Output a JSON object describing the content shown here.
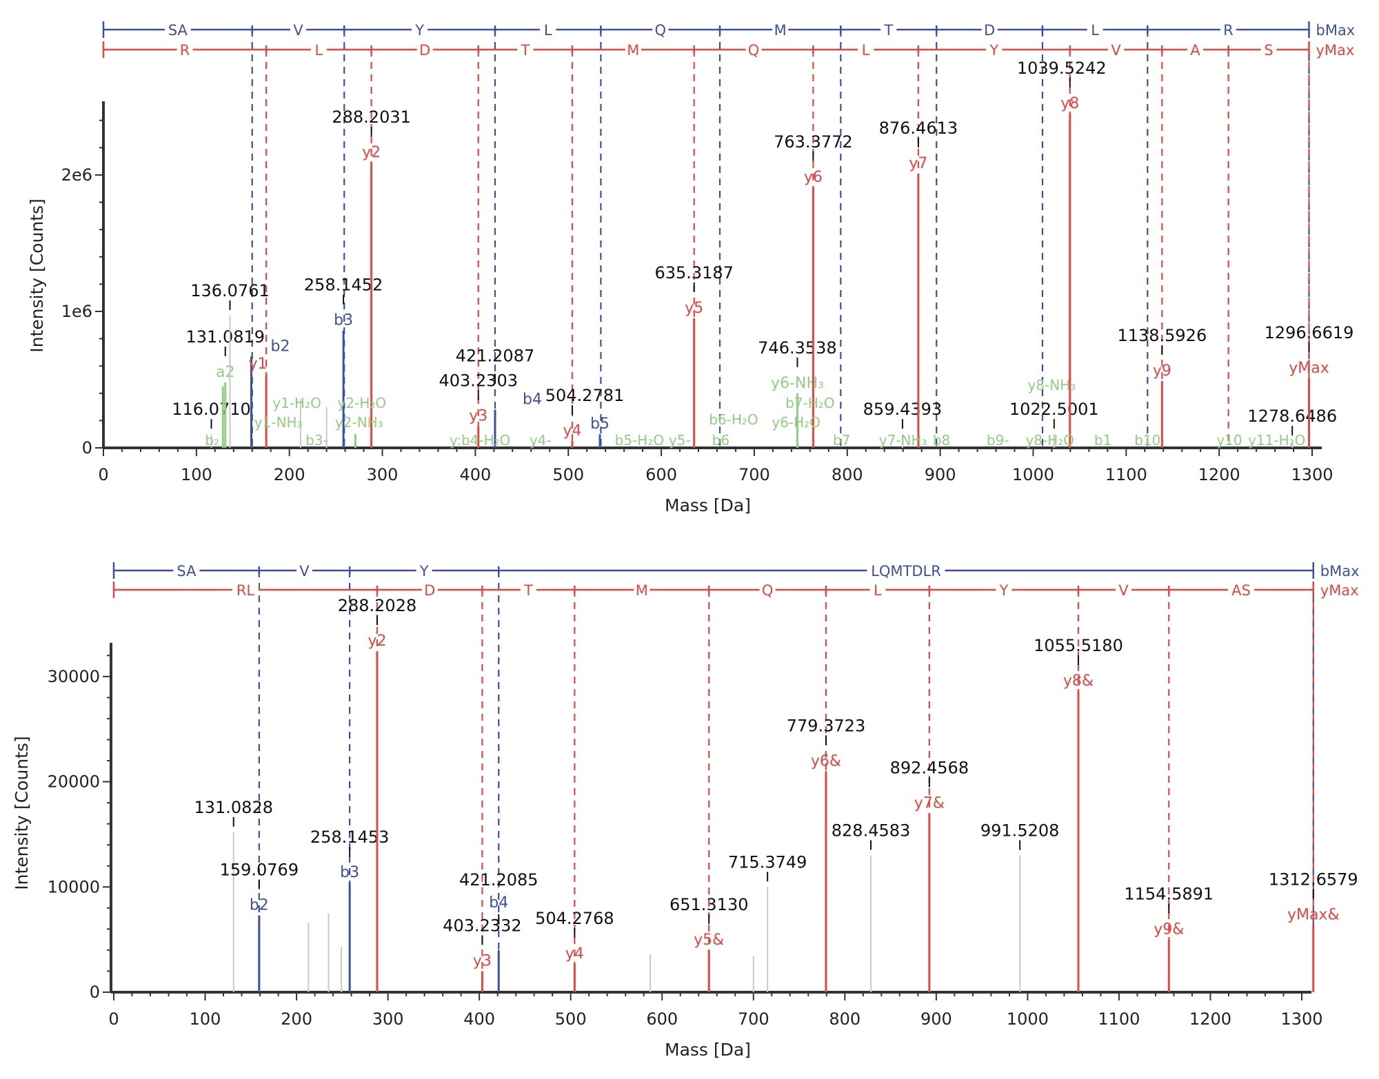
{
  "colors": {
    "b": "#3d4ea6",
    "y": "#e8453f",
    "neutral_loss": "#8fcf7f",
    "unassigned": "#c8c8c8",
    "axis": "#333333",
    "label": "#111111"
  },
  "chart_data": [
    {
      "type": "bar",
      "subtype": "annotated mass spectrum",
      "xlabel": "Mass [Da]",
      "ylabel": "Intensity [Counts]",
      "xlim": [
        0,
        1300
      ],
      "ylim": [
        0,
        2540000
      ],
      "xticks": [
        "0",
        "100",
        "200",
        "300",
        "400",
        "500",
        "600",
        "700",
        "800",
        "900",
        "1000",
        "1100",
        "1200",
        "1300"
      ],
      "yticks": [
        {
          "value": 0,
          "label": "0"
        },
        {
          "value": 1000000,
          "label": "1e6"
        },
        {
          "value": 2000000,
          "label": "2e6"
        }
      ],
      "grid": false,
      "b_ladder": {
        "end_label": "bMax",
        "boundaries": [
          0,
          160,
          259,
          421.21,
          535,
          663,
          793,
          896,
          1010,
          1123,
          1296.66
        ],
        "residues": [
          "SA",
          "V",
          "Y",
          "L",
          "Q",
          "M",
          "T",
          "D",
          "L",
          "R"
        ]
      },
      "y_ladder": {
        "end_label": "yMax",
        "boundaries": [
          0,
          175.12,
          288.2,
          403.23,
          504.28,
          635.32,
          763.38,
          876.46,
          1039.52,
          1138.59,
          1210,
          1296.66
        ],
        "residues": [
          "R",
          "L",
          "D",
          "T",
          "M",
          "Q",
          "L",
          "Y",
          "V",
          "A",
          "S"
        ]
      },
      "peaks": [
        {
          "mz": 116.071,
          "intensity": 100000,
          "ion": "",
          "series": "unassigned",
          "label": "116.0710"
        },
        {
          "mz": 128.5,
          "intensity": 450000,
          "ion": "",
          "series": "neutral_loss",
          "label": ""
        },
        {
          "mz": 131.0819,
          "intensity": 480000,
          "ion": "a2",
          "series": "neutral_loss",
          "label": "131.0819"
        },
        {
          "mz": 136.0761,
          "intensity": 970000,
          "ion": "",
          "series": "unassigned",
          "label": "136.0761"
        },
        {
          "mz": 159.08,
          "intensity": 670000,
          "ion": "b2",
          "series": "b",
          "label": ""
        },
        {
          "mz": 175.12,
          "intensity": 540000,
          "ion": "y1",
          "series": "y",
          "label": ""
        },
        {
          "mz": 212,
          "intensity": 360000,
          "ion": "",
          "series": "unassigned",
          "label": ""
        },
        {
          "mz": 240,
          "intensity": 300000,
          "ion": "",
          "series": "unassigned",
          "label": ""
        },
        {
          "mz": 258.1452,
          "intensity": 860000,
          "ion": "b3",
          "series": "b",
          "label": "258.1452"
        },
        {
          "mz": 271,
          "intensity": 100000,
          "ion": "",
          "series": "neutral_loss",
          "label": ""
        },
        {
          "mz": 288.2031,
          "intensity": 2090000,
          "ion": "y2",
          "series": "y",
          "label": "288.2031"
        },
        {
          "mz": 403.2303,
          "intensity": 160000,
          "ion": "y3",
          "series": "y",
          "label": "403.2303"
        },
        {
          "mz": 421.2087,
          "intensity": 280000,
          "ion": "b4",
          "series": "b",
          "label": "421.2087"
        },
        {
          "mz": 504.2781,
          "intensity": 50000,
          "ion": "y4",
          "series": "y",
          "label": "504.2781"
        },
        {
          "mz": 534,
          "intensity": 100000,
          "ion": "b5",
          "series": "b",
          "label": ""
        },
        {
          "mz": 635.3187,
          "intensity": 950000,
          "ion": "y5",
          "series": "y",
          "label": "635.3187"
        },
        {
          "mz": 746.3538,
          "intensity": 400000,
          "ion": "y6-NH₃",
          "series": "neutral_loss",
          "label": "746.3538"
        },
        {
          "mz": 763.3772,
          "intensity": 1910000,
          "ion": "y6",
          "series": "y",
          "label": "763.3772"
        },
        {
          "mz": 859.4393,
          "intensity": 100000,
          "ion": "",
          "series": "unassigned",
          "label": "859.4393"
        },
        {
          "mz": 876.4613,
          "intensity": 2010000,
          "ion": "y7",
          "series": "y",
          "label": "876.4613"
        },
        {
          "mz": 1022.5001,
          "intensity": 100000,
          "ion": "",
          "series": "unassigned",
          "label": "1022.5001"
        },
        {
          "mz": 1039.5242,
          "intensity": 2450000,
          "ion": "y8",
          "series": "y",
          "label": "1039.5242"
        },
        {
          "mz": 1138.5926,
          "intensity": 490000,
          "ion": "y9",
          "series": "y",
          "label": "1138.5926"
        },
        {
          "mz": 1278.6486,
          "intensity": 50000,
          "ion": "",
          "series": "unassigned",
          "label": "1278.6486"
        },
        {
          "mz": 1296.6619,
          "intensity": 510000,
          "ion": "yMax",
          "series": "y",
          "label": "1296.6619"
        }
      ],
      "upper_labels": [
        {
          "mz": 157,
          "text": "y1-NH₃",
          "series": "neutral_loss"
        },
        {
          "mz": 275,
          "text": "y2-NH₃",
          "series": "neutral_loss"
        },
        {
          "mz": 745,
          "text": "y6-H₂O",
          "series": "neutral_loss"
        },
        {
          "mz": 1020,
          "text": "y8-NH₃",
          "series": "neutral_loss"
        }
      ],
      "baseline_labels": [
        {
          "mz": 117,
          "text": "b₂",
          "series": "neutral_loss"
        },
        {
          "mz": 168,
          "text": "y1-H₂O",
          "series": "neutral_loss"
        },
        {
          "mz": 225,
          "text": "b3-",
          "series": "neutral_loss"
        },
        {
          "mz": 278,
          "text": "y2-H₂O",
          "series": "neutral_loss"
        },
        {
          "mz": 405,
          "text": "y:b4-H₂O",
          "series": "neutral_loss"
        },
        {
          "mz": 470,
          "text": "y4-",
          "series": "neutral_loss"
        },
        {
          "mz": 532,
          "text": "b5-H₂O",
          "series": "neutral_loss"
        },
        {
          "mz": 602,
          "text": "y5-",
          "series": "neutral_loss"
        },
        {
          "mz": 664,
          "text": "b6",
          "series": "b"
        },
        {
          "mz": 700,
          "text": "b6-H₂O",
          "series": "neutral_loss"
        },
        {
          "mz": 760,
          "text": "b7-H₂O",
          "series": "neutral_loss"
        },
        {
          "mz": 794,
          "text": "b7",
          "series": "b"
        },
        {
          "mz": 860,
          "text": "y7-NH₃",
          "series": "neutral_loss"
        },
        {
          "mz": 897,
          "text": "b8",
          "series": "b"
        },
        {
          "mz": 962,
          "text": "b9-",
          "series": "neutral_loss"
        },
        {
          "mz": 1018,
          "text": "y8-H₂O",
          "series": "neutral_loss"
        },
        {
          "mz": 1075,
          "text": "b1",
          "series": "neutral_loss"
        },
        {
          "mz": 1123,
          "text": "b10",
          "series": "b"
        },
        {
          "mz": 1211,
          "text": "y10",
          "series": "y"
        },
        {
          "mz": 1262,
          "text": "y11-H₂O",
          "series": "neutral_loss"
        }
      ]
    },
    {
      "type": "bar",
      "subtype": "annotated mass spectrum",
      "xlabel": "Mass [Da]",
      "ylabel": "Intensity [Counts]",
      "xlim": [
        0,
        1300
      ],
      "ylim": [
        0,
        33200
      ],
      "xticks": [
        "0",
        "100",
        "200",
        "300",
        "400",
        "500",
        "600",
        "700",
        "800",
        "900",
        "1000",
        "1100",
        "1200",
        "1300"
      ],
      "yticks": [
        {
          "value": 0,
          "label": "0"
        },
        {
          "value": 10000,
          "label": "10000"
        },
        {
          "value": 20000,
          "label": "20000"
        },
        {
          "value": 30000,
          "label": "30000"
        }
      ],
      "grid": false,
      "b_ladder": {
        "end_label": "bMax",
        "boundaries": [
          0,
          159.08,
          258.15,
          421.21,
          1312.66
        ],
        "residues": [
          "SA",
          "V",
          "Y",
          "LQMTDLR"
        ]
      },
      "y_ladder": {
        "end_label": "yMax",
        "boundaries": [
          0,
          288.2,
          403.23,
          504.28,
          651.31,
          779.37,
          892.46,
          1055.52,
          1154.59,
          1312.66
        ],
        "residues": [
          "RL",
          "D",
          "T",
          "M",
          "Q",
          "L",
          "Y",
          "V",
          "AS"
        ]
      },
      "peaks": [
        {
          "mz": 131.0828,
          "intensity": 15200,
          "ion": "",
          "series": "unassigned",
          "label": "131.0828"
        },
        {
          "mz": 159.0769,
          "intensity": 7300,
          "ion": "b2",
          "series": "b",
          "label": "159.0769"
        },
        {
          "mz": 213,
          "intensity": 6600,
          "ion": "",
          "series": "unassigned",
          "label": ""
        },
        {
          "mz": 235,
          "intensity": 7500,
          "ion": "",
          "series": "unassigned",
          "label": ""
        },
        {
          "mz": 249,
          "intensity": 4300,
          "ion": "",
          "series": "unassigned",
          "label": ""
        },
        {
          "mz": 258.1453,
          "intensity": 10400,
          "ion": "b3",
          "series": "b",
          "label": "258.1453"
        },
        {
          "mz": 288.2028,
          "intensity": 32400,
          "ion": "y2",
          "series": "y",
          "label": "288.2028"
        },
        {
          "mz": 403.2332,
          "intensity": 2000,
          "ion": "y3",
          "series": "y",
          "label": "403.2332"
        },
        {
          "mz": 421.2085,
          "intensity": 4000,
          "ion": "b4",
          "series": "b",
          "label": "421.2085"
        },
        {
          "mz": 504.2768,
          "intensity": 2700,
          "ion": "y4",
          "series": "y",
          "label": "504.2768"
        },
        {
          "mz": 587,
          "intensity": 3600,
          "ion": "",
          "series": "unassigned",
          "label": ""
        },
        {
          "mz": 651.313,
          "intensity": 4000,
          "ion": "y5&",
          "series": "y",
          "label": "651.3130"
        },
        {
          "mz": 700,
          "intensity": 3400,
          "ion": "",
          "series": "unassigned",
          "label": ""
        },
        {
          "mz": 715.3749,
          "intensity": 10000,
          "ion": "",
          "series": "unassigned",
          "label": "715.3749"
        },
        {
          "mz": 779.3723,
          "intensity": 21000,
          "ion": "y6&",
          "series": "y",
          "label": "779.3723"
        },
        {
          "mz": 828.4583,
          "intensity": 13000,
          "ion": "",
          "series": "unassigned",
          "label": "828.4583"
        },
        {
          "mz": 892.4568,
          "intensity": 17000,
          "ion": "y7&",
          "series": "y",
          "label": "892.4568"
        },
        {
          "mz": 991.5208,
          "intensity": 13000,
          "ion": "",
          "series": "unassigned",
          "label": "991.5208"
        },
        {
          "mz": 1055.518,
          "intensity": 28600,
          "ion": "y8&",
          "series": "y",
          "label": "1055.5180"
        },
        {
          "mz": 1154.5891,
          "intensity": 5000,
          "ion": "y9&",
          "series": "y",
          "label": "1154.5891"
        },
        {
          "mz": 1312.6579,
          "intensity": 6400,
          "ion": "yMax&",
          "series": "y",
          "label": "1312.6579"
        }
      ],
      "upper_labels": [],
      "baseline_labels": []
    }
  ]
}
